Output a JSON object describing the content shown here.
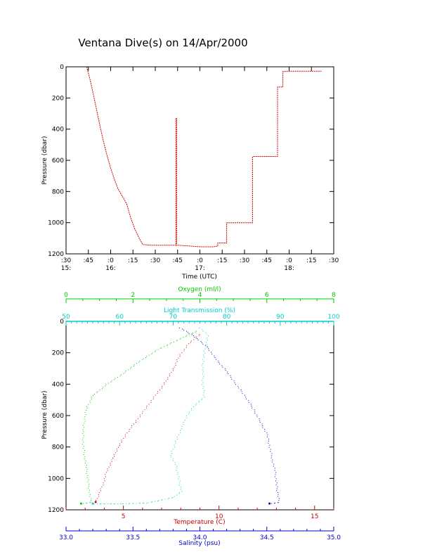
{
  "title": "Ventana Dive(s) on 14/Apr/2000",
  "chart_data": [
    {
      "type": "line",
      "name": "time-pressure",
      "xlabel": "Time (UTC)",
      "ylabel": "Pressure (dbar)",
      "xlim": [
        15.5,
        18.5
      ],
      "ylim": [
        1200,
        0
      ],
      "x_ticks": [
        {
          "value": 15.5,
          "label": ":30"
        },
        {
          "value": 15.75,
          "label": ":45"
        },
        {
          "value": 16.0,
          "label": ":0"
        },
        {
          "value": 16.25,
          "label": ":15"
        },
        {
          "value": 16.5,
          "label": ":30"
        },
        {
          "value": 16.75,
          "label": ":45"
        },
        {
          "value": 17.0,
          "label": ":0"
        },
        {
          "value": 17.25,
          "label": ":15"
        },
        {
          "value": 17.5,
          "label": ":30"
        },
        {
          "value": 17.75,
          "label": ":45"
        },
        {
          "value": 18.0,
          "label": ":0"
        },
        {
          "value": 18.25,
          "label": ":15"
        },
        {
          "value": 18.5,
          "label": ":30"
        }
      ],
      "hour_labels": [
        {
          "value": 15.5,
          "label": "15:"
        },
        {
          "value": 16.0,
          "label": "16:"
        },
        {
          "value": 17.0,
          "label": "17:"
        },
        {
          "value": 18.0,
          "label": "18:"
        }
      ],
      "y_ticks": [
        0,
        200,
        400,
        600,
        800,
        1000,
        1200
      ],
      "color": "#cc0000",
      "points": [
        [
          15.73,
          0
        ],
        [
          15.76,
          60
        ],
        [
          15.8,
          160
        ],
        [
          15.84,
          270
        ],
        [
          15.88,
          380
        ],
        [
          15.92,
          480
        ],
        [
          15.96,
          570
        ],
        [
          16.0,
          650
        ],
        [
          16.04,
          720
        ],
        [
          16.08,
          780
        ],
        [
          16.12,
          820
        ],
        [
          16.18,
          880
        ],
        [
          16.22,
          960
        ],
        [
          16.27,
          1040
        ],
        [
          16.32,
          1100
        ],
        [
          16.36,
          1140
        ],
        [
          16.45,
          1145
        ],
        [
          16.55,
          1145
        ],
        [
          16.73,
          1145
        ],
        [
          16.73,
          330
        ],
        [
          16.74,
          330
        ],
        [
          16.74,
          1145
        ],
        [
          16.85,
          1148
        ],
        [
          17.0,
          1155
        ],
        [
          17.15,
          1155
        ],
        [
          17.2,
          1150
        ],
        [
          17.2,
          1130
        ],
        [
          17.3,
          1130
        ],
        [
          17.3,
          1000
        ],
        [
          17.59,
          1000
        ],
        [
          17.59,
          580
        ],
        [
          17.6,
          575
        ],
        [
          17.87,
          575
        ],
        [
          17.87,
          130
        ],
        [
          17.93,
          130
        ],
        [
          17.93,
          30
        ],
        [
          18.0,
          28
        ],
        [
          18.36,
          28
        ]
      ]
    },
    {
      "type": "scatter",
      "name": "profiles",
      "xlabel": "Temperature (C)",
      "ylabel": "Pressure (dbar)",
      "ylim": [
        1200,
        0
      ],
      "y_ticks": [
        0,
        200,
        400,
        600,
        800,
        1000,
        1200
      ],
      "axes": {
        "temperature": {
          "label": "Temperature (C)",
          "min": 2,
          "max": 16,
          "ticks": [
            5,
            10,
            15
          ],
          "color": "#cc0000"
        },
        "salinity": {
          "label": "Salinity (psu)",
          "min": 33.0,
          "max": 35.0,
          "ticks": [
            "33.0",
            "33.5",
            "34.0",
            "34.5",
            "35.0"
          ],
          "color": "#0000cc"
        },
        "oxygen": {
          "label": "Oxygen (ml/l)",
          "min": 0,
          "max": 8,
          "ticks": [
            0,
            2,
            4,
            6,
            8
          ],
          "color": "#00cc00"
        },
        "transmission": {
          "label": "Light Transmission (%)",
          "min": 50,
          "max": 100,
          "ticks": [
            50,
            60,
            70,
            80,
            90,
            100
          ],
          "color": "#00cccc"
        }
      },
      "series": [
        {
          "name": "Temperature",
          "color": "#cc0000",
          "axis": "temperature",
          "points": [
            [
              9.0,
              80
            ],
            [
              8.4,
              140
            ],
            [
              7.9,
              220
            ],
            [
              7.6,
              300
            ],
            [
              7.1,
              400
            ],
            [
              6.6,
              480
            ],
            [
              6.1,
              560
            ],
            [
              5.6,
              640
            ],
            [
              5.1,
              720
            ],
            [
              4.7,
              800
            ],
            [
              4.4,
              880
            ],
            [
              4.1,
              960
            ],
            [
              3.9,
              1040
            ],
            [
              3.7,
              1100
            ],
            [
              3.55,
              1150
            ]
          ]
        },
        {
          "name": "Salinity",
          "color": "#0000cc",
          "axis": "salinity",
          "points": [
            [
              33.85,
              40
            ],
            [
              33.95,
              90
            ],
            [
              34.05,
              160
            ],
            [
              34.12,
              240
            ],
            [
              34.2,
              320
            ],
            [
              34.27,
              400
            ],
            [
              34.34,
              480
            ],
            [
              34.4,
              560
            ],
            [
              34.45,
              640
            ],
            [
              34.5,
              720
            ],
            [
              34.52,
              800
            ],
            [
              34.54,
              880
            ],
            [
              34.56,
              960
            ],
            [
              34.57,
              1040
            ],
            [
              34.58,
              1100
            ],
            [
              34.59,
              1150
            ],
            [
              34.52,
              1160
            ]
          ]
        },
        {
          "name": "Oxygen",
          "color": "#00cc00",
          "axis": "oxygen",
          "points": [
            [
              3.9,
              60
            ],
            [
              3.5,
              100
            ],
            [
              2.8,
              170
            ],
            [
              2.2,
              250
            ],
            [
              1.7,
              330
            ],
            [
              1.2,
              400
            ],
            [
              0.8,
              470
            ],
            [
              0.6,
              550
            ],
            [
              0.55,
              620
            ],
            [
              0.5,
              700
            ],
            [
              0.5,
              780
            ],
            [
              0.55,
              860
            ],
            [
              0.6,
              940
            ],
            [
              0.65,
              1020
            ],
            [
              0.7,
              1100
            ],
            [
              0.75,
              1150
            ],
            [
              0.45,
              1160
            ]
          ]
        },
        {
          "name": "Light Transmission",
          "color": "#00cccc",
          "axis": "transmission",
          "points": [
            [
              75.0,
              40
            ],
            [
              76.5,
              90
            ],
            [
              76.0,
              160
            ],
            [
              75.5,
              240
            ],
            [
              75.5,
              320
            ],
            [
              75.5,
              400
            ],
            [
              75.8,
              480
            ],
            [
              74.0,
              530
            ],
            [
              72.5,
              600
            ],
            [
              71.5,
              680
            ],
            [
              70.5,
              760
            ],
            [
              69.5,
              850
            ],
            [
              70.5,
              920
            ],
            [
              71.0,
              1000
            ],
            [
              71.5,
              1080
            ],
            [
              70.0,
              1120
            ],
            [
              65.0,
              1155
            ],
            [
              60.0,
              1160
            ],
            [
              55.0,
              1160
            ]
          ]
        }
      ]
    }
  ]
}
